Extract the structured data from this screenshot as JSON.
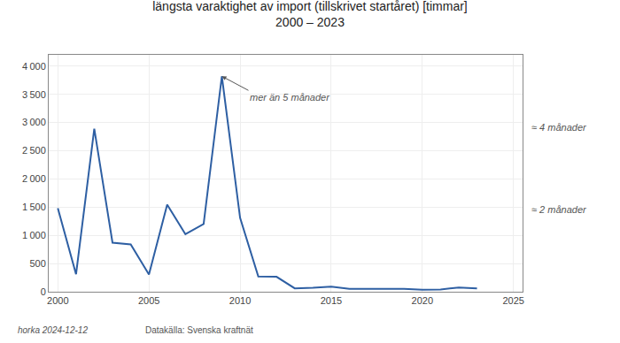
{
  "chart_data": {
    "type": "line",
    "title": "längsta varaktighet av import (tillskrivet startåret) [timmar]",
    "subtitle": "2000 – 2023",
    "x": [
      2000,
      2001,
      2002,
      2003,
      2004,
      2005,
      2006,
      2007,
      2008,
      2009,
      2010,
      2011,
      2012,
      2013,
      2014,
      2015,
      2016,
      2017,
      2018,
      2019,
      2020,
      2021,
      2022,
      2023
    ],
    "values": [
      1480,
      310,
      2890,
      870,
      840,
      305,
      1545,
      1020,
      1200,
      3820,
      1310,
      270,
      265,
      60,
      70,
      90,
      50,
      50,
      40,
      50,
      35,
      40,
      75,
      60
    ],
    "color": "#2e5fa3",
    "xlim": [
      1999.5,
      2025.5
    ],
    "xticks": [
      2000,
      2005,
      2010,
      2015,
      2020,
      2025
    ],
    "ylim": [
      0,
      4200
    ],
    "yticks": [
      0,
      500,
      {
        "value": 1000,
        "label": "1 000"
      },
      {
        "value": 1500,
        "label": "1 500"
      },
      {
        "value": 2000,
        "label": "2 000"
      },
      {
        "value": 2500,
        "label": "2 500"
      },
      {
        "value": 3000,
        "label": "3 000"
      },
      {
        "value": 3500,
        "label": "3 500"
      },
      {
        "value": 4000,
        "label": "4 000"
      }
    ],
    "grid": true,
    "annotations": [
      {
        "text": "mer än 5 månader",
        "x": 2009,
        "y": 3820
      },
      {
        "text": "≈ 4 månader",
        "y": 2920
      },
      {
        "text": "≈ 2 månader",
        "y": 1460
      },
      {
        "text": "horka 2024-12-12"
      },
      {
        "text": "Datakälla: Svenska kraftnät"
      }
    ]
  }
}
